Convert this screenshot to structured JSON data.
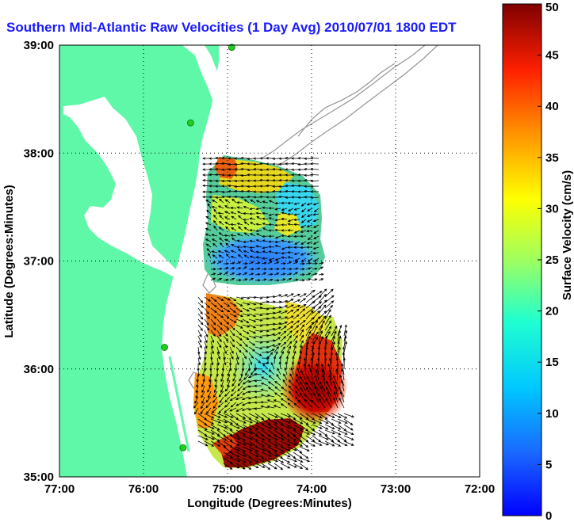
{
  "title": "Southern Mid-Atlantic Raw Velocities (1 Day Avg) 2010/07/01 1800 EDT",
  "colors": {
    "title": "#1a1aff",
    "land": "#5ff7a8",
    "water": "#ffffff",
    "bathymetry": "#999999",
    "station": "#22cc22",
    "arrow": "#000000"
  },
  "map": {
    "xlabel": "Longitude (Degrees:Minutes)",
    "ylabel": "Latitude (Degrees:Minutes)",
    "lon_ticks": [
      "77:00",
      "76:00",
      "75:00",
      "74:00",
      "73:00",
      "72:00"
    ],
    "lat_ticks": [
      "35:00",
      "36:00",
      "37:00",
      "38:00",
      "39:00"
    ],
    "lon_range": [
      77,
      72
    ],
    "lat_range": [
      35,
      39
    ],
    "grid": "dotted"
  },
  "colorbar": {
    "label": "Surface Velocity (cm/s)",
    "ticks": [
      "0",
      "5",
      "10",
      "15",
      "20",
      "25",
      "30",
      "35",
      "40",
      "45",
      "50"
    ],
    "range": [
      0,
      50
    ],
    "colormap": "jet"
  },
  "stations": [
    {
      "name": "",
      "lon": 74.95,
      "lat": 38.98
    },
    {
      "name": "",
      "lon": 75.44,
      "lat": 38.28
    },
    {
      "name": "",
      "lon": 75.75,
      "lat": 36.2
    },
    {
      "name": "",
      "lon": 75.53,
      "lat": 35.27
    }
  ]
}
